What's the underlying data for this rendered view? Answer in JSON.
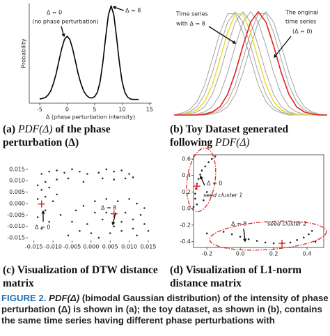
{
  "chart_data": [
    {
      "type": "line",
      "x": [
        -5,
        -4.5,
        -4,
        -3.5,
        -3,
        -2.5,
        -2,
        -1.5,
        -1,
        -0.5,
        0,
        0.5,
        1,
        1.5,
        2,
        2.5,
        3,
        3.5,
        4,
        4.5,
        5,
        5.5,
        6,
        6.5,
        7,
        7.5,
        8,
        8.5,
        9,
        9.5,
        10,
        10.5,
        11,
        11.5,
        12,
        12.5,
        13
      ],
      "series": [
        {
          "color": "#000000",
          "values": [
            0.001,
            0.002,
            0.004,
            0.009,
            0.018,
            0.034,
            0.055,
            0.082,
            0.108,
            0.128,
            0.135,
            0.128,
            0.108,
            0.082,
            0.055,
            0.034,
            0.018,
            0.009,
            0.004,
            0.003,
            0.006,
            0.015,
            0.038,
            0.079,
            0.132,
            0.18,
            0.2,
            0.18,
            0.132,
            0.079,
            0.038,
            0.015,
            0.005,
            0.001,
            0,
            0,
            0
          ]
        }
      ],
      "xlim": [
        -6.9,
        15.4
      ],
      "ylim": [
        -0.008,
        0.205
      ],
      "xticks": [
        -5,
        0,
        5,
        10,
        15
      ],
      "xlabel": "Δ (phase perturbation intensity)",
      "ylabel": "Probability",
      "annotations": [
        "Δ = 0",
        "(no phase perturbation)",
        "Δ = 8"
      ]
    },
    {
      "type": "line",
      "x": [
        0,
        1,
        2,
        3,
        4,
        5,
        6,
        7,
        8,
        9,
        10,
        11,
        12,
        13,
        14,
        15,
        16,
        17,
        18,
        19,
        20
      ],
      "series": [
        {
          "color": "#555555",
          "values": [
            0,
            0.02,
            0.05,
            0.13,
            0.29,
            0.54,
            0.8,
            0.98,
            0.98,
            0.8,
            0.54,
            0.29,
            0.13,
            0.05,
            0.02,
            0,
            0,
            0,
            0,
            0,
            0
          ]
        },
        {
          "color": "#555555",
          "values": [
            0,
            0.01,
            0.03,
            0.08,
            0.2,
            0.41,
            0.67,
            0.9,
            1,
            0.9,
            0.67,
            0.41,
            0.2,
            0.08,
            0.03,
            0.01,
            0,
            0,
            0,
            0,
            0
          ]
        },
        {
          "color": "#555555",
          "values": [
            0,
            0,
            0.01,
            0.03,
            0.08,
            0.2,
            0.41,
            0.67,
            0.9,
            1,
            0.9,
            0.67,
            0.41,
            0.2,
            0.08,
            0.03,
            0.01,
            0,
            0,
            0,
            0
          ]
        },
        {
          "color": "#555555",
          "values": [
            0,
            0,
            0,
            0.01,
            0.03,
            0.08,
            0.2,
            0.41,
            0.67,
            0.9,
            1,
            0.9,
            0.67,
            0.41,
            0.2,
            0.08,
            0.03,
            0.01,
            0,
            0,
            0
          ]
        },
        {
          "color": "#555555",
          "values": [
            0,
            0,
            0,
            0,
            0,
            0.02,
            0.05,
            0.13,
            0.29,
            0.54,
            0.8,
            0.98,
            0.98,
            0.8,
            0.54,
            0.29,
            0.13,
            0.05,
            0.02,
            0,
            0
          ]
        },
        {
          "color": "#555555",
          "values": [
            0,
            0,
            0,
            0,
            0,
            0.01,
            0.03,
            0.08,
            0.2,
            0.41,
            0.67,
            0.9,
            1,
            0.9,
            0.67,
            0.41,
            0.2,
            0.08,
            0.03,
            0.01,
            0
          ]
        },
        {
          "color": "#e8df3a",
          "values": [
            0,
            0,
            0.02,
            0.05,
            0.13,
            0.29,
            0.54,
            0.8,
            0.98,
            0.98,
            0.8,
            0.54,
            0.29,
            0.13,
            0.05,
            0.02,
            0,
            0,
            0,
            0,
            0
          ]
        },
        {
          "color": "#e02020",
          "values": [
            0,
            0,
            0,
            0,
            0.01,
            0.03,
            0.08,
            0.2,
            0.41,
            0.67,
            0.9,
            1,
            0.9,
            0.67,
            0.41,
            0.2,
            0.08,
            0.03,
            0.01,
            0,
            0
          ]
        }
      ],
      "xlim": [
        0,
        20
      ],
      "ylim": [
        0,
        1.08
      ],
      "annotations": [
        "Time series",
        "with Δ = 8",
        "The original",
        "time series",
        "(Δ = 0)"
      ]
    },
    {
      "type": "scatter",
      "series": [
        {
          "color": "#333333",
          "x": [
            -0.013,
            -0.011,
            -0.009,
            -0.007,
            -0.005,
            -0.003,
            -0.001,
            0.002,
            0.004,
            0.006,
            0.008,
            0.01,
            0.011,
            0.009,
            0.006,
            0.003,
            -0.002,
            -0.006,
            -0.009,
            -0.012,
            -0.014,
            -0.013,
            -0.011,
            -0.009,
            -0.012,
            -0.014,
            -0.01,
            -0.012,
            -0.014,
            -0.011,
            -0.013,
            -0.008,
            -0.004,
            -0.002,
            0.001,
            0.004,
            0.007,
            0.01,
            0.012,
            0.014,
            0.013,
            0.011,
            0.009,
            0.008,
            0.006,
            0.003,
            0.001,
            -0.001,
            -0.003,
            -0.005,
            0,
            0.002,
            0.005,
            0.008,
            0.011,
            0.014,
            0.015,
            0.012,
            -0.006,
            0.004
          ],
          "values": [
            0.013,
            0.014,
            0.0145,
            0.0135,
            0.015,
            0.014,
            0.013,
            0.0135,
            0.015,
            0.014,
            0.0145,
            0.013,
            0.0115,
            0.011,
            0.0105,
            0.011,
            0.0095,
            0.011,
            0.0105,
            0.0095,
            0.008,
            0.006,
            0.007,
            0.004,
            0.003,
            0.002,
            0.001,
            -0.003,
            -0.006,
            -0.008,
            -0.011,
            -0.005,
            -0.003,
            -0.001,
            0.001,
            0.002,
            0.001,
            0.002,
            0,
            -0.002,
            -0.005,
            -0.007,
            -0.004,
            -0.008,
            -0.01,
            -0.007,
            -0.004,
            -0.009,
            -0.012,
            -0.008,
            -0.013,
            -0.015,
            -0.013,
            -0.012,
            -0.011,
            -0.009,
            -0.012,
            -0.014,
            -0.014,
            -0.004
          ]
        },
        {
          "color": "#e02020",
          "marker": "plus",
          "x": [
            -0.013,
            0.006
          ],
          "values": [
            -0.0002,
            -0.0045
          ]
        }
      ],
      "xlim": [
        -0.0166,
        0.0172
      ],
      "ylim": [
        -0.0162,
        0.0174
      ],
      "xticks": [
        -0.015,
        {
          "value": -0.01,
          "label": "-0.010"
        },
        -0.005,
        {
          "value": 0,
          "label": "0.000"
        },
        0.005,
        {
          "value": 0.01,
          "label": "0.010"
        },
        0.015
      ],
      "yticks": [
        0.015,
        {
          "value": 0.01,
          "label": "0.010"
        },
        0.005,
        {
          "value": 0,
          "label": "0.000"
        },
        -0.005,
        {
          "value": -0.01,
          "label": "-0.010"
        },
        -0.015
      ],
      "annotations": [
        "Δ = 8",
        "Δ = 0"
      ]
    },
    {
      "type": "scatter",
      "series": [
        {
          "color": "#222222",
          "x": [
            -0.26,
            -0.27,
            -0.27,
            -0.265,
            -0.26,
            -0.25,
            -0.24,
            -0.23,
            -0.21,
            -0.19,
            -0.17,
            -0.15,
            -0.22,
            -0.2,
            -0.28,
            -0.1,
            -0.05,
            0,
            0.05,
            0.1,
            0.15,
            0.2,
            0.25,
            0.3,
            0.34,
            0.38,
            0.41,
            0.43,
            -0.2,
            0.45
          ],
          "values": [
            0.05,
            0.12,
            0.18,
            0.24,
            0.3,
            0.36,
            0.41,
            0.46,
            0.51,
            0.56,
            0.6,
            0.63,
            0.1,
            0.2,
            0.02,
            -0.28,
            -0.31,
            -0.34,
            -0.37,
            -0.39,
            -0.41,
            -0.42,
            -0.42,
            -0.41,
            -0.38,
            -0.35,
            -0.31,
            -0.27,
            -0.3,
            -0.4
          ]
        },
        {
          "color": "#e02020",
          "marker": "plus",
          "x": [
            -0.26,
            0.25
          ],
          "values": [
            0.27,
            -0.42
          ]
        }
      ],
      "xlim": [
        -0.28,
        0.5
      ],
      "ylim": [
        -0.47,
        0.65
      ],
      "xticks": [
        -0.2,
        {
          "value": 0,
          "label": "0.0"
        },
        0.2,
        0.4
      ],
      "yticks": [
        0.6,
        0.4,
        0.2,
        {
          "value": 0,
          "label": "0.0"
        },
        -0.2,
        -0.4
      ],
      "annotations": [
        "Δ = 0",
        "seed cluster 1",
        "Δ = 8",
        "seed cluster 2"
      ]
    }
  ],
  "captions": [
    {
      "label": "(a)",
      "math": "PDF(Δ)",
      "text": "of the phase perturbation (Δ)"
    },
    {
      "label": "(b)",
      "text": "Toy Dataset generated following",
      "math": "PDF(Δ)"
    },
    {
      "label": "(c)",
      "text": "Visualization of DTW distance matrix"
    },
    {
      "label": "(d)",
      "text": "Visualization of L1-norm distance matrix"
    }
  ],
  "figure_caption": {
    "label": "FIGURE 2.",
    "math": "PDF(Δ)",
    "text": "(bimodal Gaussian distribution) of the intensity of phase perturbation (Δ) is shown in (a); the toy dataset, as shown in (b), contains the same time series having different phase perturbations with"
  }
}
